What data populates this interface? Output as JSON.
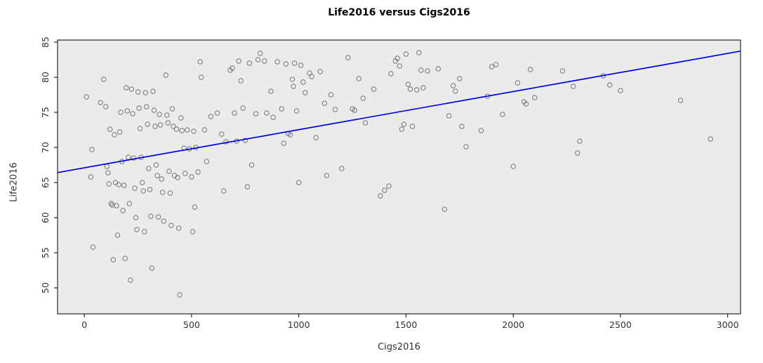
{
  "chart_data": {
    "type": "scatter",
    "title": "Life2016 versus Cigs2016",
    "xlabel": "Cigs2016",
    "ylabel": "Life2016",
    "xlim": [
      -125,
      3060
    ],
    "ylim": [
      46.3,
      85.3
    ],
    "x_ticks": [
      0,
      500,
      1000,
      1500,
      2000,
      2500,
      3000
    ],
    "y_ticks": [
      50,
      55,
      60,
      65,
      70,
      75,
      80,
      85
    ],
    "grid": false,
    "legend": "none",
    "regression": {
      "intercept": 67.1,
      "slope": 0.00543
    },
    "colors": {
      "plot_bg": "#ebebeb",
      "point": "#636363",
      "line": "#0000e0",
      "tick_text": "#333333"
    },
    "points": [
      [
        10,
        77.2
      ],
      [
        30,
        65.8
      ],
      [
        35,
        69.7
      ],
      [
        40,
        55.8
      ],
      [
        75,
        76.4
      ],
      [
        90,
        79.7
      ],
      [
        100,
        75.8
      ],
      [
        105,
        67.3
      ],
      [
        110,
        66.4
      ],
      [
        115,
        64.8
      ],
      [
        120,
        72.6
      ],
      [
        125,
        62.0
      ],
      [
        130,
        61.8
      ],
      [
        135,
        54.0
      ],
      [
        140,
        71.8
      ],
      [
        145,
        65.0
      ],
      [
        150,
        61.7
      ],
      [
        155,
        57.5
      ],
      [
        160,
        64.7
      ],
      [
        165,
        72.2
      ],
      [
        170,
        75.0
      ],
      [
        175,
        68.0
      ],
      [
        180,
        61.0
      ],
      [
        185,
        64.6
      ],
      [
        190,
        54.2
      ],
      [
        195,
        78.5
      ],
      [
        200,
        75.2
      ],
      [
        205,
        68.6
      ],
      [
        210,
        62.0
      ],
      [
        215,
        51.1
      ],
      [
        220,
        78.3
      ],
      [
        225,
        74.8
      ],
      [
        230,
        68.5
      ],
      [
        235,
        64.2
      ],
      [
        240,
        60.0
      ],
      [
        245,
        58.3
      ],
      [
        250,
        77.9
      ],
      [
        255,
        75.6
      ],
      [
        260,
        72.7
      ],
      [
        265,
        68.6
      ],
      [
        270,
        65.0
      ],
      [
        275,
        63.8
      ],
      [
        280,
        58.0
      ],
      [
        285,
        77.8
      ],
      [
        290,
        75.8
      ],
      [
        295,
        73.3
      ],
      [
        300,
        67.0
      ],
      [
        305,
        64.0
      ],
      [
        310,
        60.2
      ],
      [
        315,
        52.8
      ],
      [
        320,
        78.0
      ],
      [
        325,
        75.3
      ],
      [
        330,
        73.0
      ],
      [
        335,
        67.5
      ],
      [
        340,
        66.0
      ],
      [
        345,
        60.1
      ],
      [
        350,
        74.7
      ],
      [
        355,
        73.2
      ],
      [
        360,
        65.5
      ],
      [
        365,
        63.6
      ],
      [
        370,
        59.5
      ],
      [
        380,
        80.3
      ],
      [
        385,
        74.6
      ],
      [
        390,
        73.5
      ],
      [
        395,
        66.6
      ],
      [
        400,
        63.5
      ],
      [
        405,
        58.9
      ],
      [
        410,
        75.5
      ],
      [
        415,
        73.0
      ],
      [
        420,
        66.0
      ],
      [
        430,
        72.6
      ],
      [
        435,
        65.7
      ],
      [
        440,
        58.5
      ],
      [
        445,
        49.0
      ],
      [
        450,
        74.2
      ],
      [
        455,
        72.4
      ],
      [
        465,
        69.9
      ],
      [
        470,
        66.3
      ],
      [
        480,
        72.5
      ],
      [
        490,
        69.8
      ],
      [
        500,
        65.8
      ],
      [
        505,
        58.0
      ],
      [
        510,
        72.3
      ],
      [
        515,
        61.5
      ],
      [
        520,
        70.0
      ],
      [
        530,
        66.5
      ],
      [
        540,
        82.2
      ],
      [
        545,
        80.0
      ],
      [
        560,
        72.5
      ],
      [
        570,
        68.0
      ],
      [
        590,
        74.4
      ],
      [
        620,
        74.9
      ],
      [
        640,
        71.9
      ],
      [
        650,
        63.8
      ],
      [
        660,
        70.8
      ],
      [
        680,
        81.0
      ],
      [
        690,
        81.3
      ],
      [
        700,
        74.9
      ],
      [
        710,
        70.9
      ],
      [
        720,
        82.3
      ],
      [
        730,
        79.5
      ],
      [
        740,
        75.6
      ],
      [
        750,
        71.0
      ],
      [
        760,
        64.4
      ],
      [
        770,
        82.0
      ],
      [
        780,
        67.5
      ],
      [
        800,
        74.8
      ],
      [
        810,
        82.5
      ],
      [
        820,
        83.4
      ],
      [
        840,
        82.3
      ],
      [
        850,
        74.9
      ],
      [
        870,
        78.0
      ],
      [
        880,
        74.3
      ],
      [
        900,
        82.2
      ],
      [
        920,
        75.5
      ],
      [
        930,
        70.6
      ],
      [
        940,
        81.9
      ],
      [
        950,
        72.0
      ],
      [
        960,
        71.8
      ],
      [
        970,
        79.7
      ],
      [
        975,
        78.7
      ],
      [
        980,
        82.0
      ],
      [
        990,
        75.2
      ],
      [
        1000,
        65.0
      ],
      [
        1010,
        81.7
      ],
      [
        1020,
        79.3
      ],
      [
        1030,
        77.8
      ],
      [
        1050,
        80.6
      ],
      [
        1060,
        80.1
      ],
      [
        1080,
        71.4
      ],
      [
        1100,
        80.8
      ],
      [
        1120,
        76.3
      ],
      [
        1130,
        66.0
      ],
      [
        1150,
        77.5
      ],
      [
        1170,
        75.4
      ],
      [
        1200,
        67.0
      ],
      [
        1230,
        82.8
      ],
      [
        1250,
        75.5
      ],
      [
        1260,
        75.3
      ],
      [
        1280,
        79.8
      ],
      [
        1300,
        77.0
      ],
      [
        1310,
        73.5
      ],
      [
        1350,
        78.3
      ],
      [
        1380,
        63.1
      ],
      [
        1400,
        63.9
      ],
      [
        1420,
        64.5
      ],
      [
        1430,
        80.5
      ],
      [
        1450,
        82.3
      ],
      [
        1460,
        82.7
      ],
      [
        1470,
        81.6
      ],
      [
        1480,
        72.6
      ],
      [
        1490,
        73.3
      ],
      [
        1500,
        83.3
      ],
      [
        1510,
        79.0
      ],
      [
        1520,
        78.3
      ],
      [
        1530,
        73.0
      ],
      [
        1550,
        78.2
      ],
      [
        1560,
        83.5
      ],
      [
        1570,
        81.0
      ],
      [
        1580,
        78.5
      ],
      [
        1600,
        80.9
      ],
      [
        1650,
        81.2
      ],
      [
        1680,
        61.2
      ],
      [
        1700,
        74.5
      ],
      [
        1720,
        78.8
      ],
      [
        1730,
        78.0
      ],
      [
        1750,
        79.8
      ],
      [
        1760,
        73.0
      ],
      [
        1780,
        70.1
      ],
      [
        1850,
        72.4
      ],
      [
        1880,
        77.3
      ],
      [
        1900,
        81.5
      ],
      [
        1920,
        81.8
      ],
      [
        1950,
        74.7
      ],
      [
        2000,
        67.3
      ],
      [
        2020,
        79.2
      ],
      [
        2050,
        76.5
      ],
      [
        2060,
        76.2
      ],
      [
        2080,
        81.1
      ],
      [
        2100,
        77.1
      ],
      [
        2230,
        80.9
      ],
      [
        2280,
        78.7
      ],
      [
        2300,
        69.2
      ],
      [
        2310,
        70.9
      ],
      [
        2420,
        80.2
      ],
      [
        2450,
        78.9
      ],
      [
        2500,
        78.1
      ],
      [
        2780,
        76.7
      ],
      [
        2920,
        71.2
      ]
    ]
  }
}
